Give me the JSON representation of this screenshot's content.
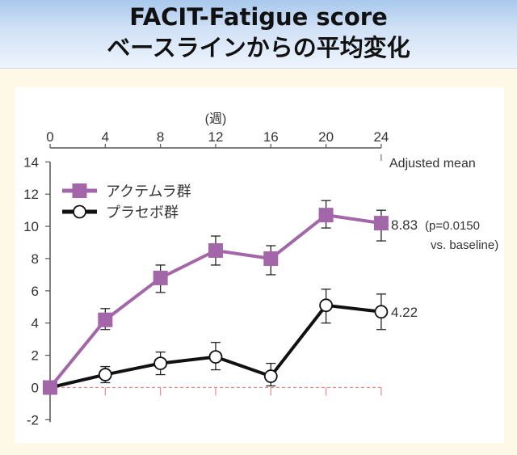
{
  "header": {
    "title_line1": "FACIT-Fatigue score",
    "title_line2": "ベースラインからの平均変化"
  },
  "chart_data": {
    "type": "line",
    "x_unit_label": "(週)",
    "x": [
      0,
      4,
      8,
      12,
      16,
      20,
      24
    ],
    "x_ticks": [
      "0",
      "4",
      "8",
      "12",
      "16",
      "20",
      "24"
    ],
    "y_ticks": [
      "-2",
      "0",
      "2",
      "4",
      "6",
      "8",
      "10",
      "12",
      "14"
    ],
    "ylim": [
      -2,
      14
    ],
    "legend_position": "top-left",
    "adjusted_mean_label": "Adjusted mean",
    "series": [
      {
        "name": "アクテムラ群",
        "color": "#a366a8",
        "marker": "square",
        "values": [
          0,
          4.2,
          6.8,
          8.5,
          8.0,
          10.7,
          10.2
        ],
        "err_low": [
          0,
          3.6,
          5.9,
          7.6,
          7.0,
          9.9,
          9.1
        ],
        "err_high": [
          0,
          4.9,
          7.6,
          9.4,
          8.8,
          11.6,
          11.0
        ],
        "end_label": "8.83",
        "annotation_line1": "(p=0.0150",
        "annotation_line2": "vs. baseline)"
      },
      {
        "name": "プラセボ群",
        "color": "#111111",
        "marker": "circle",
        "values": [
          0,
          0.8,
          1.5,
          1.9,
          0.7,
          5.1,
          4.7
        ],
        "err_low": [
          0,
          0.3,
          0.8,
          1.1,
          0.1,
          4.0,
          3.6
        ],
        "err_high": [
          0,
          1.3,
          2.2,
          2.8,
          1.5,
          6.1,
          5.8
        ],
        "end_label": "4.22"
      }
    ]
  }
}
